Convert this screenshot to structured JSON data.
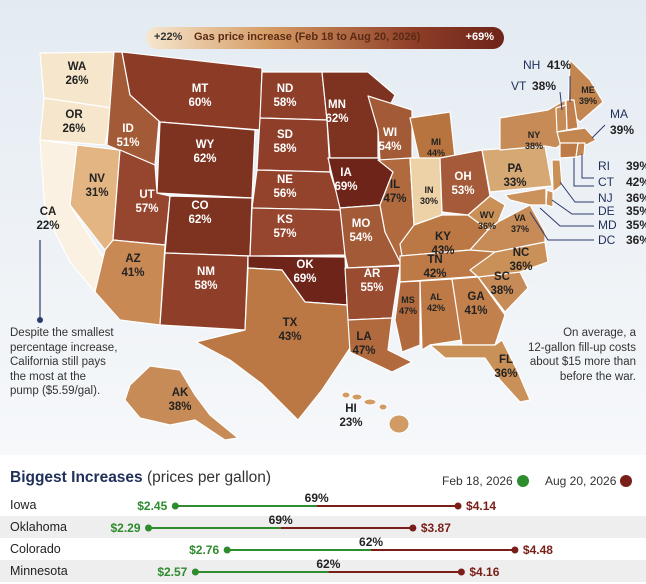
{
  "legend": {
    "low": "+22%",
    "title": "Gas price increase (Feb 18 to Aug 20, 2026)",
    "high": "+69%",
    "colors": [
      "#f6e7cf",
      "#d49a63",
      "#8e3e28",
      "#6e2418"
    ]
  },
  "states": [
    {
      "abbr": "WA",
      "pct": "26%"
    },
    {
      "abbr": "OR",
      "pct": "26%"
    },
    {
      "abbr": "CA",
      "pct": "22%"
    },
    {
      "abbr": "NV",
      "pct": "31%"
    },
    {
      "abbr": "ID",
      "pct": "51%"
    },
    {
      "abbr": "MT",
      "pct": "60%"
    },
    {
      "abbr": "WY",
      "pct": "62%"
    },
    {
      "abbr": "UT",
      "pct": "57%"
    },
    {
      "abbr": "CO",
      "pct": "62%"
    },
    {
      "abbr": "AZ",
      "pct": "41%"
    },
    {
      "abbr": "NM",
      "pct": "58%"
    },
    {
      "abbr": "ND",
      "pct": "58%"
    },
    {
      "abbr": "SD",
      "pct": "58%"
    },
    {
      "abbr": "NE",
      "pct": "56%"
    },
    {
      "abbr": "KS",
      "pct": "57%"
    },
    {
      "abbr": "OK",
      "pct": "69%"
    },
    {
      "abbr": "TX",
      "pct": "43%"
    },
    {
      "abbr": "MN",
      "pct": "62%"
    },
    {
      "abbr": "IA",
      "pct": "69%"
    },
    {
      "abbr": "MO",
      "pct": "54%"
    },
    {
      "abbr": "AR",
      "pct": "55%"
    },
    {
      "abbr": "LA",
      "pct": "47%"
    },
    {
      "abbr": "WI",
      "pct": "54%"
    },
    {
      "abbr": "IL",
      "pct": "47%"
    },
    {
      "abbr": "MI",
      "pct": "44%"
    },
    {
      "abbr": "IN",
      "pct": "30%"
    },
    {
      "abbr": "OH",
      "pct": "53%"
    },
    {
      "abbr": "KY",
      "pct": "43%"
    },
    {
      "abbr": "TN",
      "pct": "42%"
    },
    {
      "abbr": "MS",
      "pct": "47%"
    },
    {
      "abbr": "AL",
      "pct": "42%"
    },
    {
      "abbr": "GA",
      "pct": "41%"
    },
    {
      "abbr": "FL",
      "pct": "36%"
    },
    {
      "abbr": "SC",
      "pct": "38%"
    },
    {
      "abbr": "NC",
      "pct": "36%"
    },
    {
      "abbr": "VA",
      "pct": "37%"
    },
    {
      "abbr": "WV",
      "pct": "36%"
    },
    {
      "abbr": "PA",
      "pct": "33%"
    },
    {
      "abbr": "NY",
      "pct": "38%"
    },
    {
      "abbr": "ME",
      "pct": "39%"
    },
    {
      "abbr": "NH",
      "pct": "41%"
    },
    {
      "abbr": "VT",
      "pct": "38%"
    },
    {
      "abbr": "MA",
      "pct": "39%"
    },
    {
      "abbr": "RI",
      "pct": "39%"
    },
    {
      "abbr": "CT",
      "pct": "42%"
    },
    {
      "abbr": "NJ",
      "pct": "36%"
    },
    {
      "abbr": "DE",
      "pct": "35%"
    },
    {
      "abbr": "MD",
      "pct": "35%"
    },
    {
      "abbr": "DC",
      "pct": "36%"
    },
    {
      "abbr": "AK",
      "pct": "38%"
    },
    {
      "abbr": "HI",
      "pct": "23%"
    }
  ],
  "notes": {
    "california_lines": [
      "Despite the smallest",
      "percentage increase,",
      "California still pays",
      "the most at the",
      "pump ($5.59/gal)."
    ],
    "average_lines": [
      "On average, a",
      "12-gallon fill-up costs",
      "about $15 more than",
      "before the war."
    ]
  },
  "increases": {
    "title": "Biggest Increases",
    "unit": "(prices per gallon)",
    "feb_label": "Feb 18, 2026",
    "aug_label": "Aug 20, 2026",
    "feb_color": "#2e8b2e",
    "aug_color": "#7a1f18",
    "price_min": 2.0,
    "price_max": 4.6,
    "rows": [
      {
        "state": "Iowa",
        "feb": "$2.45",
        "aug": "$4.14",
        "pct": "69%",
        "feb_value": 2.45,
        "aug_value": 4.14
      },
      {
        "state": "Oklahoma",
        "feb": "$2.29",
        "aug": "$3.87",
        "pct": "69%",
        "feb_value": 2.29,
        "aug_value": 3.87
      },
      {
        "state": "Colorado",
        "feb": "$2.76",
        "aug": "$4.48",
        "pct": "62%",
        "feb_value": 2.76,
        "aug_value": 4.48
      },
      {
        "state": "Minnesota",
        "feb": "$2.57",
        "aug": "$4.16",
        "pct": "62%",
        "feb_value": 2.57,
        "aug_value": 4.16
      }
    ]
  }
}
